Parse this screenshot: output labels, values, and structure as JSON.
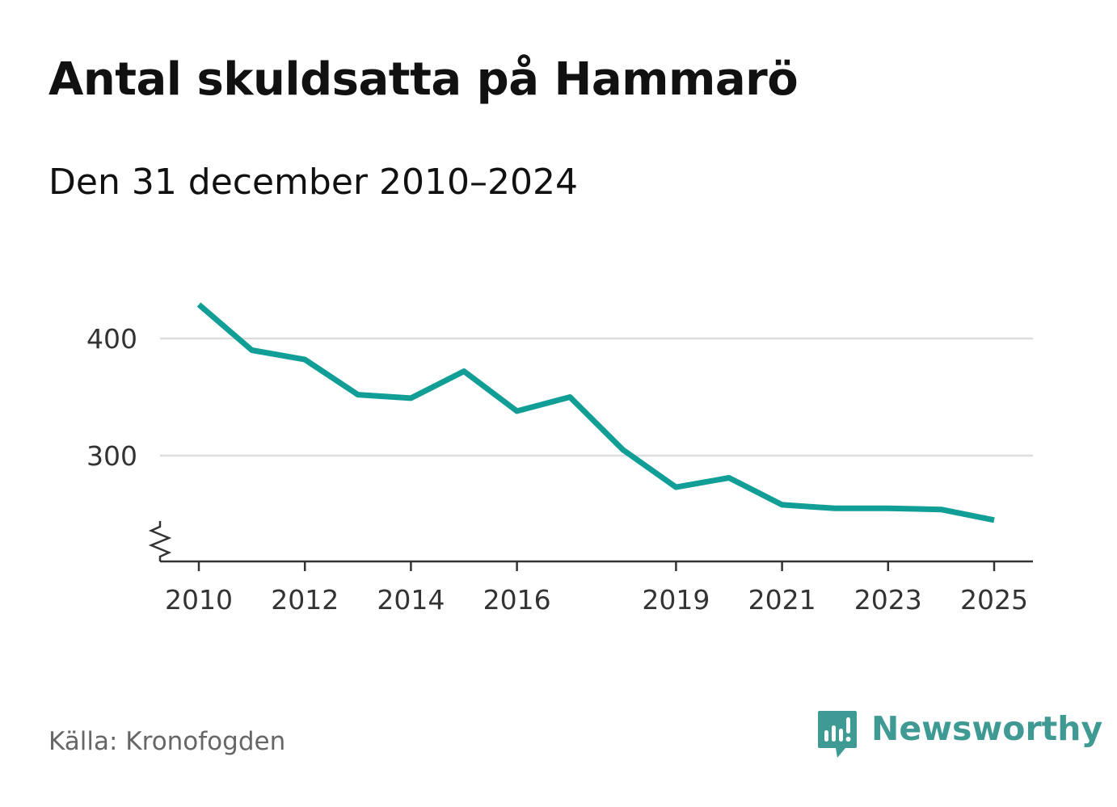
{
  "title": "Antal skuldsatta på Hammarö",
  "subtitle": "Den 31 december 2010–2024",
  "source": "Källa: Kronofogden",
  "brand": "Newsworthy",
  "colors": {
    "line": "#119e96",
    "grid": "#dddddd",
    "axis": "#333333",
    "brand": "#3f9a94"
  },
  "chart_data": {
    "type": "line",
    "title": "Antal skuldsatta på Hammarö",
    "xlabel": "",
    "ylabel": "",
    "x": [
      2010,
      2011,
      2012,
      2013,
      2014,
      2015,
      2016,
      2017,
      2018,
      2019,
      2020,
      2021,
      2022,
      2023,
      2024,
      2025
    ],
    "values": [
      429,
      390,
      382,
      352,
      349,
      372,
      338,
      350,
      305,
      273,
      281,
      258,
      255,
      255,
      254,
      245
    ],
    "xticks": [
      2010,
      2012,
      2014,
      2016,
      2019,
      2021,
      2023,
      2025
    ],
    "xtick_labels": [
      "2010",
      "2012",
      "2014",
      "2016",
      "2019",
      "2021",
      "2023",
      "2025"
    ],
    "yticks": [
      300,
      400
    ],
    "ytick_labels": [
      "300",
      "400"
    ],
    "xlim": [
      2010,
      2025
    ],
    "ylim": [
      210,
      430
    ],
    "grid": true,
    "axis_break": true
  }
}
